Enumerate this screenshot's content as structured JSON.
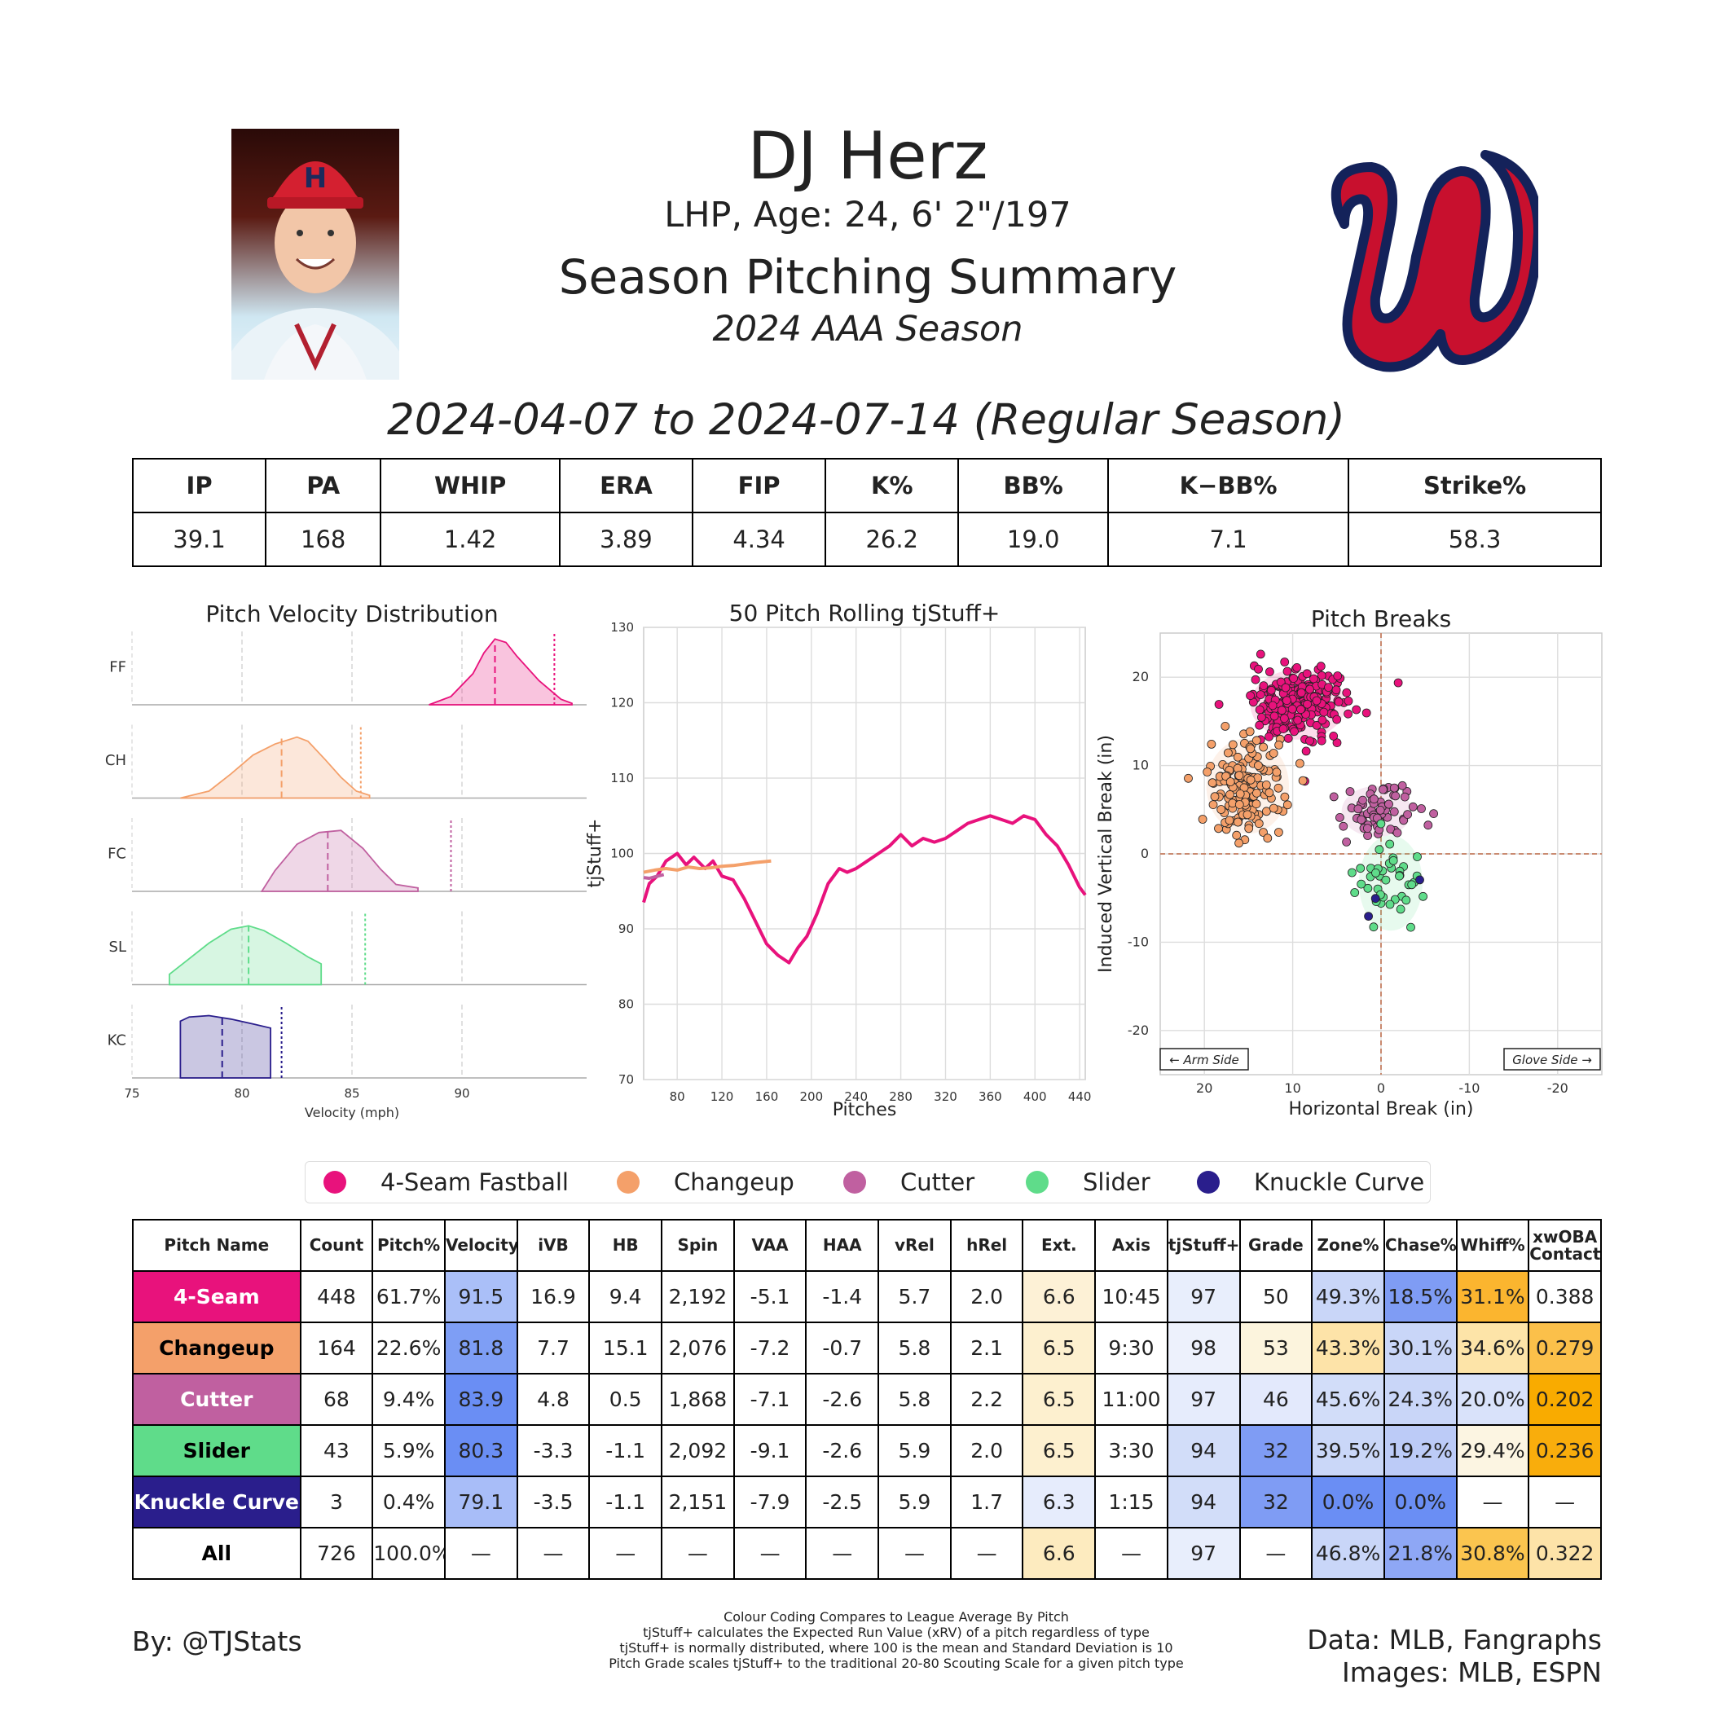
{
  "header": {
    "name": "DJ Herz",
    "bio": "LHP, Age: 24, 6' 2\"/197",
    "summary_title": "Season Pitching Summary",
    "season": "2024 AAA Season",
    "date_range": "2024-04-07 to 2024-07-14 (Regular Season)"
  },
  "colors": {
    "FF": "#e8127c",
    "CH": "#f4a06a",
    "FC": "#c060a0",
    "SL": "#5fdc8a",
    "KC": "#2a1e8c"
  },
  "stats": {
    "headers": [
      "IP",
      "PA",
      "WHIP",
      "ERA",
      "FIP",
      "K%",
      "BB%",
      "K−BB%",
      "Strike%"
    ],
    "values": [
      "39.1",
      "168",
      "1.42",
      "3.89",
      "4.34",
      "26.2",
      "19.0",
      "7.1",
      "58.3"
    ]
  },
  "legend": [
    "4-Seam Fastball",
    "Changeup",
    "Cutter",
    "Slider",
    "Knuckle Curve"
  ],
  "chart_data": [
    {
      "type": "area",
      "title": "Pitch Velocity Distribution",
      "xlabel": "Velocity (mph)",
      "xlim": [
        75,
        95
      ],
      "xticks": [
        75,
        80,
        85,
        90
      ],
      "series": [
        {
          "name": "FF",
          "mean": 91.5,
          "league_mean": 94.2,
          "x": [
            88.5,
            89.5,
            90.5,
            91.0,
            91.5,
            92.0,
            92.5,
            93.5,
            94.5,
            95.0
          ],
          "density": [
            0.0,
            0.12,
            0.45,
            0.75,
            0.95,
            0.9,
            0.7,
            0.35,
            0.08,
            0.02
          ]
        },
        {
          "name": "CH",
          "mean": 81.8,
          "league_mean": 85.4,
          "x": [
            77.2,
            78.5,
            79.5,
            80.5,
            81.5,
            82.5,
            83.0,
            83.8,
            84.5,
            85.2,
            85.8
          ],
          "density": [
            0.0,
            0.1,
            0.35,
            0.62,
            0.78,
            0.88,
            0.82,
            0.55,
            0.3,
            0.1,
            0.04
          ]
        },
        {
          "name": "FC",
          "mean": 83.9,
          "league_mean": 89.5,
          "x": [
            80.9,
            81.5,
            82.5,
            83.5,
            84.5,
            85.5,
            86.3,
            87.0,
            88.0
          ],
          "density": [
            0.0,
            0.3,
            0.68,
            0.85,
            0.88,
            0.62,
            0.32,
            0.1,
            0.05
          ]
        },
        {
          "name": "SL",
          "mean": 80.3,
          "league_mean": 85.6,
          "x": [
            76.7,
            77.5,
            78.5,
            79.5,
            80.3,
            81.0,
            82.0,
            83.0,
            83.6
          ],
          "density": [
            0.15,
            0.35,
            0.6,
            0.8,
            0.85,
            0.78,
            0.6,
            0.4,
            0.3
          ]
        },
        {
          "name": "KC",
          "mean": 79.1,
          "league_mean": 81.8,
          "x": [
            77.2,
            77.6,
            78.5,
            79.5,
            80.5,
            81.3
          ],
          "density": [
            0.82,
            0.88,
            0.9,
            0.85,
            0.78,
            0.72
          ]
        }
      ]
    },
    {
      "type": "line",
      "title": "50 Pitch Rolling tjStuff+",
      "xlabel": "Pitches",
      "ylabel": "tjStuff+",
      "xlim": [
        50,
        445
      ],
      "ylim": [
        70,
        130
      ],
      "xticks": [
        80,
        120,
        160,
        200,
        240,
        280,
        320,
        360,
        400,
        440
      ],
      "yticks": [
        70,
        80,
        90,
        100,
        110,
        120,
        130
      ],
      "series": [
        {
          "name": "FF",
          "x": [
            50,
            55,
            62,
            70,
            80,
            88,
            95,
            105,
            112,
            120,
            130,
            140,
            150,
            160,
            170,
            180,
            188,
            196,
            205,
            215,
            225,
            232,
            240,
            250,
            260,
            270,
            280,
            290,
            300,
            310,
            320,
            330,
            340,
            350,
            360,
            370,
            380,
            390,
            400,
            410,
            420,
            430,
            440,
            445
          ],
          "y": [
            93.5,
            96,
            97,
            99,
            100,
            98.5,
            99.5,
            98,
            99,
            97,
            96.5,
            94,
            91,
            88,
            86.5,
            85.5,
            87.5,
            89,
            92,
            96,
            98,
            97.5,
            98,
            99,
            100,
            101,
            102.5,
            101,
            102,
            101.5,
            102,
            103,
            104,
            104.5,
            105,
            104.5,
            104,
            105,
            104.5,
            102.5,
            101,
            98.5,
            95.5,
            94.5
          ]
        },
        {
          "name": "CH",
          "x": [
            50,
            60,
            70,
            80,
            90,
            100,
            110,
            120,
            130,
            140,
            150,
            164
          ],
          "y": [
            97.5,
            97.8,
            98,
            97.8,
            98.2,
            98,
            98.1,
            98.3,
            98.4,
            98.6,
            98.8,
            99
          ]
        },
        {
          "name": "FC",
          "x": [
            50,
            55,
            60,
            68
          ],
          "y": [
            96.8,
            96.7,
            96.9,
            97.2
          ]
        }
      ]
    },
    {
      "type": "scatter",
      "title": "Pitch Breaks",
      "xlabel": "Horizontal Break (in)",
      "ylabel": "Induced Vertical Break (in)",
      "xlim": [
        25,
        -25
      ],
      "ylim": [
        -25,
        25
      ],
      "xticks": [
        20,
        10,
        0,
        -10,
        -20
      ],
      "yticks": [
        -20,
        -10,
        0,
        10,
        20
      ],
      "annotations": [
        "← Arm Side",
        "Glove Side →"
      ],
      "series": [
        {
          "name": "4-Seam Fastball",
          "mean_x": 9.4,
          "mean_y": 16.9,
          "sd_x": 3.0,
          "sd_y": 2.2,
          "n": 448
        },
        {
          "name": "Changeup",
          "mean_x": 15.1,
          "mean_y": 7.7,
          "sd_x": 2.6,
          "sd_y": 3.0,
          "n": 164
        },
        {
          "name": "Cutter",
          "mean_x": 0.5,
          "mean_y": 4.8,
          "sd_x": 2.2,
          "sd_y": 1.6,
          "n": 68
        },
        {
          "name": "Slider",
          "mean_x": -1.1,
          "mean_y": -3.3,
          "sd_x": 2.0,
          "sd_y": 3.0,
          "n": 43
        },
        {
          "name": "Knuckle Curve",
          "mean_x": -1.1,
          "mean_y": -3.5,
          "sd_x": 2.5,
          "sd_y": 2.0,
          "n": 3
        }
      ]
    }
  ],
  "pitch_table": {
    "headers": [
      "Pitch Name",
      "Count",
      "Pitch%",
      "Velocity",
      "iVB",
      "HB",
      "Spin",
      "VAA",
      "HAA",
      "vRel",
      "hRel",
      "Ext.",
      "Axis",
      "tjStuff+",
      "Grade",
      "Zone%",
      "Chase%",
      "Whiff%",
      "xwOBA Contact"
    ],
    "rows": [
      {
        "cells": [
          "4-Seam",
          "448",
          "61.7%",
          "91.5",
          "16.9",
          "9.4",
          "2,192",
          "-5.1",
          "-1.4",
          "5.7",
          "2.0",
          "6.6",
          "10:45",
          "97",
          "50",
          "49.3%",
          "18.5%",
          "31.1%",
          "0.388"
        ],
        "name_bg": "#e8127c",
        "name_fg": "#ffffff",
        "shades": {
          "3": "#aabff8",
          "11": "#fdf1d6",
          "13": "#e8eefc",
          "15": "#c9d6f8",
          "16": "#7f9cf4",
          "17": "#fbb52f"
        }
      },
      {
        "cells": [
          "Changeup",
          "164",
          "22.6%",
          "81.8",
          "7.7",
          "15.1",
          "2,076",
          "-7.2",
          "-0.7",
          "5.8",
          "2.1",
          "6.5",
          "9:30",
          "98",
          "53",
          "43.3%",
          "30.1%",
          "34.6%",
          "0.279"
        ],
        "name_bg": "#f4a06a",
        "name_fg": "#000000",
        "shades": {
          "3": "#7e9ef5",
          "11": "#fdf0cf",
          "13": "#edf1fc",
          "14": "#fcf4dd",
          "15": "#fde3a8",
          "16": "#c9d6f8",
          "17": "#fde4a8",
          "18": "#fbc04a"
        }
      },
      {
        "cells": [
          "Cutter",
          "68",
          "9.4%",
          "83.9",
          "4.8",
          "0.5",
          "1,868",
          "-7.1",
          "-2.6",
          "5.8",
          "2.2",
          "6.5",
          "11:00",
          "97",
          "46",
          "45.6%",
          "24.3%",
          "20.0%",
          "0.202"
        ],
        "name_bg": "#c060a0",
        "name_fg": "#ffffff",
        "shades": {
          "3": "#6a8ef4",
          "11": "#fdf0cf",
          "13": "#e6ecfc",
          "14": "#e3e9fc",
          "15": "#d2ddf9",
          "16": "#c9d6f8",
          "17": "#d9e2fa",
          "18": "#f9ab00"
        }
      },
      {
        "cells": [
          "Slider",
          "43",
          "5.9%",
          "80.3",
          "-3.3",
          "-1.1",
          "2,092",
          "-9.1",
          "-2.6",
          "5.9",
          "2.0",
          "6.5",
          "3:30",
          "94",
          "32",
          "39.5%",
          "19.2%",
          "29.4%",
          "0.236"
        ],
        "name_bg": "#5fdc8a",
        "name_fg": "#000000",
        "shades": {
          "3": "#6a8ef4",
          "11": "#fdf0cf",
          "13": "#d2ddf9",
          "14": "#7f9cf4",
          "15": "#cad7f8",
          "16": "#bccbf7",
          "17": "#fcf5e2",
          "18": "#f9ad0c"
        }
      },
      {
        "cells": [
          "Knuckle Curve",
          "3",
          "0.4%",
          "79.1",
          "-3.5",
          "-1.1",
          "2,151",
          "-7.9",
          "-2.5",
          "5.9",
          "1.7",
          "6.3",
          "1:15",
          "94",
          "32",
          "0.0%",
          "0.0%",
          "—",
          "—"
        ],
        "name_bg": "#2a1e8c",
        "name_fg": "#ffffff",
        "shades": {
          "3": "#a8bdf8",
          "11": "#e6ecfc",
          "13": "#d2ddf9",
          "14": "#7f9cf4",
          "15": "#6a8ef4",
          "16": "#6a8ef4"
        }
      },
      {
        "cells": [
          "All",
          "726",
          "100.0%",
          "—",
          "—",
          "—",
          "—",
          "—",
          "—",
          "—",
          "—",
          "6.6",
          "—",
          "97",
          "—",
          "46.8%",
          "21.8%",
          "30.8%",
          "0.322"
        ],
        "name_bg": "#ffffff",
        "name_fg": "#000000",
        "shades": {
          "11": "#fdebbf",
          "13": "#e8eefc",
          "15": "#c9d6f8",
          "16": "#8ea7f5",
          "17": "#fbc54f",
          "18": "#fde3a8"
        }
      }
    ]
  },
  "footer": {
    "by": "By: @TJStats",
    "notes": [
      "Colour Coding Compares to League Average By Pitch",
      "tjStuff+ calculates the Expected Run Value (xRV) of a pitch regardless of type",
      "tjStuff+ is normally distributed, where 100 is the mean and Standard Deviation is 10",
      "Pitch Grade scales tjStuff+ to the traditional 20-80 Scouting Scale for a given pitch type"
    ],
    "data_source": "Data: MLB, Fangraphs",
    "images_source": "Images: MLB, ESPN"
  }
}
